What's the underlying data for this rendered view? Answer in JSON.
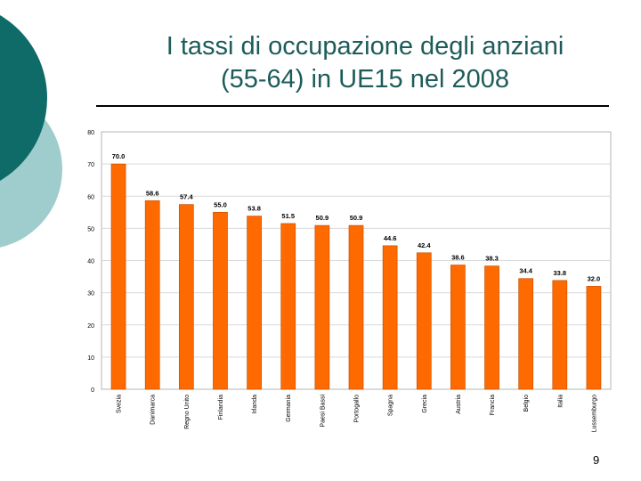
{
  "slide": {
    "title_line1": "I tassi di occupazione degli anziani",
    "title_line2": "(55-64) in UE15 nel 2008",
    "page_number": "9",
    "colors": {
      "title": "#1d5c5a",
      "bar": "#ff6a00",
      "bar_outline": "#cc4f00",
      "deco_dark": "#0e6b68",
      "deco_light": "#9fcccc"
    }
  },
  "chart_data": {
    "type": "bar",
    "categories": [
      "Svezia",
      "Danimarca",
      "Regno Unito",
      "Finlandia",
      "Irlanda",
      "Germania",
      "Paesi Bassi",
      "Portogallo",
      "Spagna",
      "Grecia",
      "Austria",
      "Francia",
      "Belgio",
      "Italia",
      "Lussemburgo"
    ],
    "values": [
      70.0,
      58.6,
      57.4,
      55.0,
      53.8,
      51.5,
      50.9,
      50.9,
      44.6,
      42.4,
      38.6,
      38.3,
      34.4,
      33.8,
      32.0
    ],
    "value_labels": [
      "70.0",
      "58.6",
      "57.4",
      "55.0",
      "53.8",
      "51.5",
      "50.9",
      "50.9",
      "44.6",
      "42.4",
      "38.6",
      "38.3",
      "34.4",
      "33.8",
      "32.0"
    ],
    "ylim": [
      0,
      80
    ],
    "yticks": [
      "0",
      "10",
      "20",
      "30",
      "40",
      "50",
      "60",
      "70",
      "80"
    ],
    "grid": true,
    "legend": "none"
  }
}
